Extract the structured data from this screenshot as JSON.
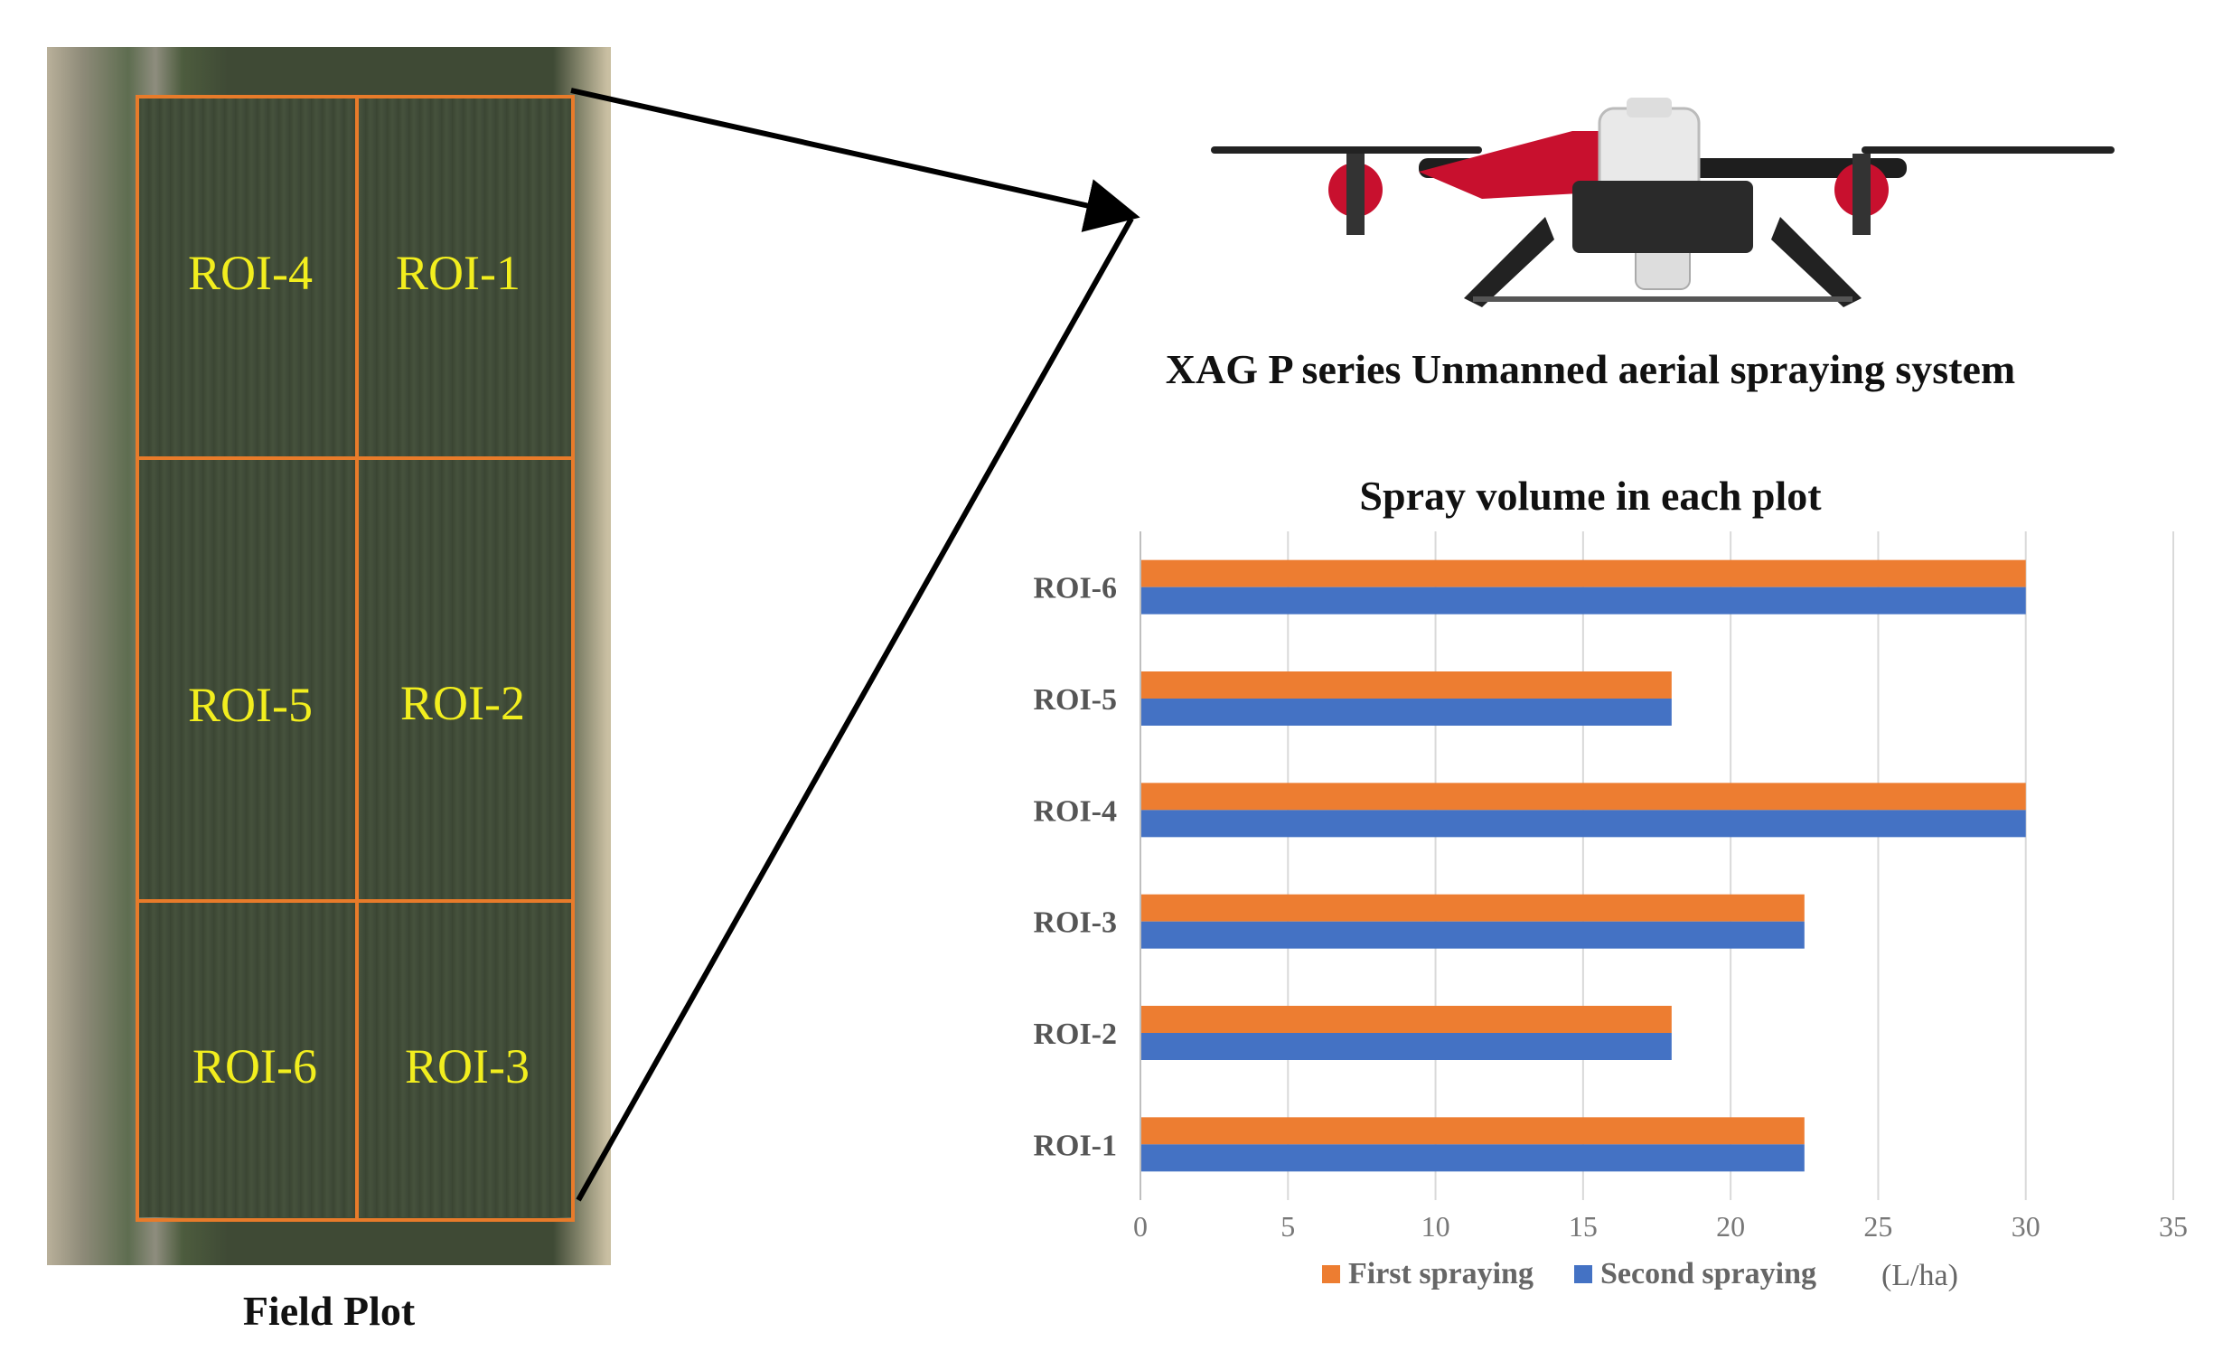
{
  "field": {
    "title": "Field Plot",
    "plots": [
      {
        "id": "roi-4",
        "label": "ROI-4"
      },
      {
        "id": "roi-1",
        "label": "ROI-1"
      },
      {
        "id": "roi-5",
        "label": "ROI-5"
      },
      {
        "id": "roi-2",
        "label": "ROI-2"
      },
      {
        "id": "roi-6",
        "label": "ROI-6"
      },
      {
        "id": "roi-3",
        "label": "ROI-3"
      }
    ],
    "plot_border_color": "#e87b2a",
    "label_color": "#f2ee1e"
  },
  "drone": {
    "caption": "XAG P series Unmanned aerial spraying system"
  },
  "chart_data": {
    "type": "bar",
    "orientation": "horizontal",
    "title": "Spray volume in each plot",
    "categories": [
      "ROI-1",
      "ROI-2",
      "ROI-3",
      "ROI-4",
      "ROI-5",
      "ROI-6"
    ],
    "series": [
      {
        "name": "First spraying",
        "color": "#ed7d31",
        "values": [
          22.5,
          18,
          22.5,
          30,
          18,
          30
        ]
      },
      {
        "name": "Second spraying",
        "color": "#4472c4",
        "values": [
          22.5,
          18,
          22.5,
          30,
          18,
          30
        ]
      }
    ],
    "xlim": [
      0,
      35
    ],
    "xticks": [
      "0",
      "5",
      "10",
      "15",
      "20",
      "25",
      "30",
      "35"
    ],
    "unit": "(L/ha)",
    "grid": "vertical",
    "legend_position": "bottom"
  }
}
